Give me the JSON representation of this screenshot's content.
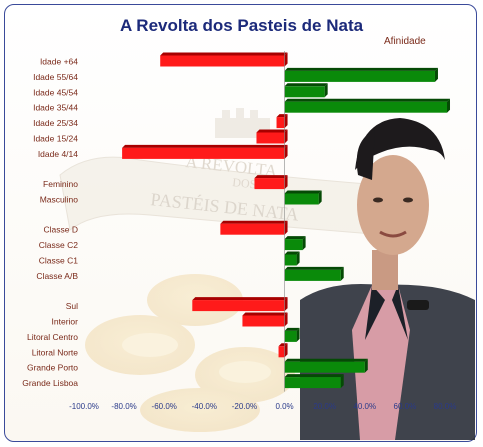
{
  "chart_data": {
    "type": "bar",
    "orientation": "horizontal",
    "title": "A Revolta dos Pasteis de Nata",
    "legend_label": "Afinidade",
    "xlim": [
      -100,
      80
    ],
    "x_tick_labels": [
      "-100.0%",
      "-80.0%",
      "-60.0%",
      "-40.0%",
      "-20.0%",
      "0.0%",
      "20.0%",
      "40.0%",
      "60.0%",
      "80.0%"
    ],
    "colors": {
      "negative": "#ff1a1a",
      "positive": "#0a8a0a",
      "label": "#7a2a1a",
      "axis_labels": "#2a3a8a"
    },
    "groups": [
      {
        "rows": [
          {
            "label": "Idade +64",
            "value": -62
          },
          {
            "label": "Idade 55/64",
            "value": 75
          },
          {
            "label": "Idade 45/54",
            "value": 20
          },
          {
            "label": "Idade 35/44",
            "value": 81
          },
          {
            "label": "Idade 25/34",
            "value": -4
          },
          {
            "label": "Idade 15/24",
            "value": -14
          },
          {
            "label": "Idade 4/14",
            "value": -81
          }
        ]
      },
      {
        "rows": [
          {
            "label": "Feminino",
            "value": -15
          },
          {
            "label": "Masculino",
            "value": 17
          }
        ]
      },
      {
        "rows": [
          {
            "label": "Classe D",
            "value": -32
          },
          {
            "label": "Classe C2",
            "value": 9
          },
          {
            "label": "Classe C1",
            "value": 6
          },
          {
            "label": "Classe A/B",
            "value": 28
          }
        ]
      },
      {
        "rows": [
          {
            "label": "Sul",
            "value": -46
          },
          {
            "label": "Interior",
            "value": -21
          },
          {
            "label": "Litoral Centro",
            "value": 6
          },
          {
            "label": "Litoral Norte",
            "value": -3
          },
          {
            "label": "Grande Porto",
            "value": 40
          },
          {
            "label": "Grande Lisboa",
            "value": 28
          }
        ]
      }
    ]
  },
  "background": {
    "banner_text_1": "A REVOLTA",
    "banner_text_2": "DOS",
    "banner_text_3": "PASTÉIS DE NATA"
  }
}
